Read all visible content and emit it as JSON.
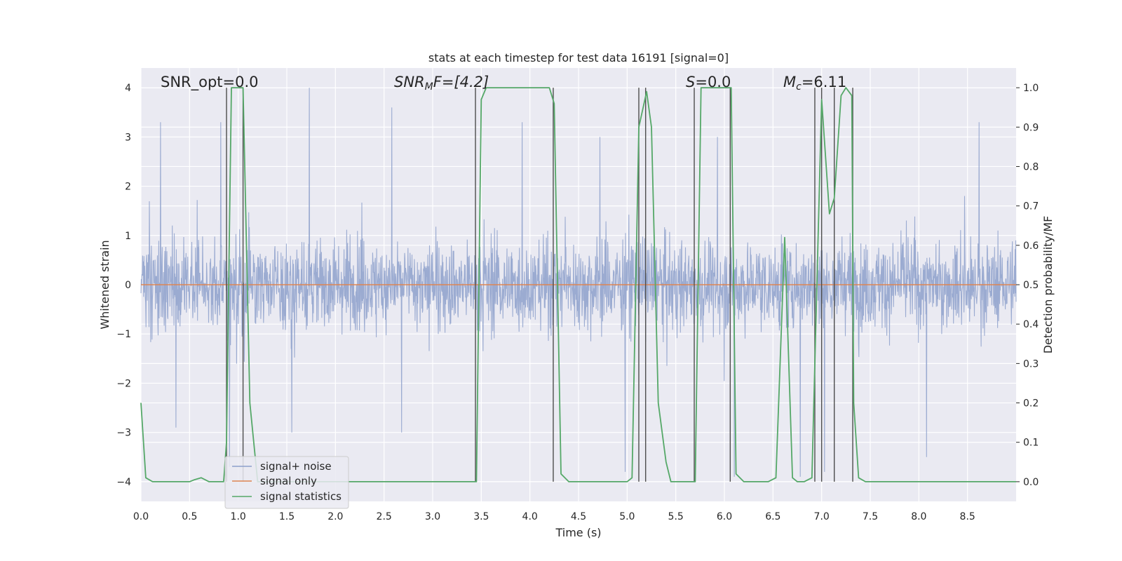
{
  "chart_data": {
    "type": "line",
    "title": "stats at each timestep for test data 16191 [signal=0]",
    "xlabel": "Time (s)",
    "ylabel_left": "Whitened strain",
    "ylabel_right": "Detection probability/MF",
    "xlim": [
      0.0,
      9.0
    ],
    "ylim_left": [
      -4.4,
      4.4
    ],
    "ylim_right": [
      -0.05,
      1.05
    ],
    "grid": true,
    "legend_placement": "lower-left",
    "xticks": [
      0.0,
      0.5,
      1.0,
      1.5,
      2.0,
      2.5,
      3.0,
      3.5,
      4.0,
      4.5,
      5.0,
      5.5,
      6.0,
      6.5,
      7.0,
      7.5,
      8.0,
      8.5
    ],
    "xtick_labels": [
      "0.0",
      "0.5",
      "1.0",
      "1.5",
      "2.0",
      "2.5",
      "3.0",
      "3.5",
      "4.0",
      "4.5",
      "5.0",
      "5.5",
      "6.0",
      "6.5",
      "7.0",
      "7.5",
      "8.0",
      "8.5"
    ],
    "yticks_left": [
      -4,
      -3,
      -2,
      -1,
      0,
      1,
      2,
      3,
      4
    ],
    "ytick_labels_left": [
      "−4",
      "−3",
      "−2",
      "−1",
      "0",
      "1",
      "2",
      "3",
      "4"
    ],
    "yticks_right": [
      0.0,
      0.1,
      0.2,
      0.3,
      0.4,
      0.5,
      0.6,
      0.7,
      0.8,
      0.9,
      1.0
    ],
    "ytick_labels_right": [
      "0.0",
      "0.1",
      "0.2",
      "0.3",
      "0.4",
      "0.5",
      "0.6",
      "0.7",
      "0.8",
      "0.9",
      "1.0"
    ],
    "annotations": {
      "snr_opt": "SNR_opt=0.0",
      "snr_mf_prefix": "SNR",
      "snr_mf_sub": "M",
      "snr_mf_suffix": "F=[4.2]",
      "s_prefix": "S",
      "s_suffix": "=0.0",
      "mc_prefix": "M",
      "mc_sub": "c",
      "mc_suffix": "=6.11"
    },
    "series": [
      {
        "name": "signal+ noise",
        "color": "#8da0cb",
        "axis": "left",
        "style": "dense noise trace",
        "sample_rate_hz": 2048,
        "typical_range": [
          -2.0,
          2.0
        ],
        "peaks": [
          {
            "x": 0.2,
            "y": 3.3
          },
          {
            "x": 0.82,
            "y": 3.3
          },
          {
            "x": 1.73,
            "y": 4.0
          },
          {
            "x": 2.58,
            "y": 3.6
          },
          {
            "x": 3.92,
            "y": 3.3
          },
          {
            "x": 4.72,
            "y": 3.0
          },
          {
            "x": 5.93,
            "y": 3.0
          },
          {
            "x": 8.62,
            "y": 3.3
          },
          {
            "x": 0.36,
            "y": -2.9
          },
          {
            "x": 0.91,
            "y": -3.7
          },
          {
            "x": 1.55,
            "y": -3.0
          },
          {
            "x": 2.68,
            "y": -3.0
          },
          {
            "x": 4.98,
            "y": -3.8
          },
          {
            "x": 6.1,
            "y": -3.9
          },
          {
            "x": 6.78,
            "y": -3.9
          },
          {
            "x": 7.03,
            "y": -3.8
          },
          {
            "x": 8.08,
            "y": -3.5
          }
        ]
      },
      {
        "name": "signal only",
        "color": "#dd8452",
        "axis": "left",
        "x": [
          0.0,
          9.0
        ],
        "y": [
          0.0,
          0.0
        ]
      },
      {
        "name": "signal statistics",
        "color": "#55a868",
        "axis": "right",
        "x": [
          0.0,
          0.05,
          0.12,
          0.25,
          0.5,
          0.55,
          0.62,
          0.7,
          0.85,
          0.88,
          0.93,
          1.05,
          1.12,
          1.2,
          1.25,
          3.45,
          3.5,
          3.55,
          4.2,
          4.25,
          4.32,
          4.4,
          5.0,
          5.05,
          5.12,
          5.2,
          5.25,
          5.32,
          5.4,
          5.45,
          5.55,
          5.7,
          5.76,
          6.07,
          6.12,
          6.2,
          6.45,
          6.53,
          6.62,
          6.7,
          6.75,
          6.82,
          6.9,
          7.0,
          7.08,
          7.13,
          7.2,
          7.25,
          7.31,
          7.33,
          7.38,
          7.45,
          9.0
        ],
        "y": [
          0.2,
          0.01,
          0.0,
          0.0,
          0.0,
          0.005,
          0.01,
          0.0,
          0.0,
          0.1,
          1.0,
          1.0,
          0.2,
          0.0,
          0.0,
          0.0,
          0.97,
          1.0,
          1.0,
          0.96,
          0.02,
          0.0,
          0.0,
          0.01,
          0.9,
          0.99,
          0.9,
          0.2,
          0.05,
          0.0,
          0.0,
          0.0,
          1.0,
          1.0,
          0.02,
          0.0,
          0.0,
          0.01,
          0.62,
          0.01,
          0.0,
          0.0,
          0.01,
          0.97,
          0.68,
          0.72,
          0.98,
          1.0,
          0.98,
          0.2,
          0.01,
          0.0,
          0.0
        ]
      }
    ],
    "vertical_markers": [
      0.88,
      1.05,
      3.44,
      4.24,
      5.12,
      5.19,
      5.69,
      6.06,
      6.93,
      7.0,
      7.13,
      7.32
    ]
  }
}
